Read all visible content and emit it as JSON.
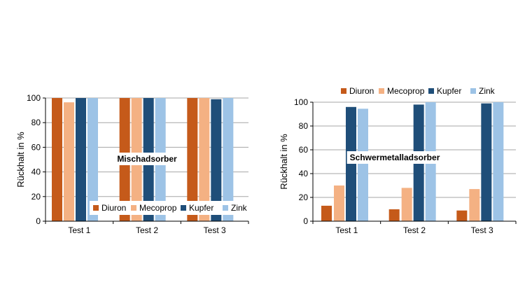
{
  "chart_data": [
    {
      "type": "bar",
      "annotation": "Mischadsorber",
      "ylabel": "Rückhalt in %",
      "ylim": [
        0,
        100
      ],
      "yticks": [
        0,
        20,
        40,
        60,
        80,
        100
      ],
      "grid": true,
      "legend_position": "bottom-right inside plot",
      "categories": [
        "Test 1",
        "Test 2",
        "Test 3"
      ],
      "series": [
        {
          "name": "Diuron",
          "color": "#c55a1a",
          "values": [
            100,
            100,
            100
          ]
        },
        {
          "name": "Mecoprop",
          "color": "#f4b183",
          "values": [
            96.5,
            100,
            100
          ]
        },
        {
          "name": "Kupfer",
          "color": "#1f4e79",
          "values": [
            100,
            100,
            99
          ]
        },
        {
          "name": "Zink",
          "color": "#9dc3e6",
          "values": [
            100,
            100,
            100
          ]
        }
      ]
    },
    {
      "type": "bar",
      "annotation": "Schwermetalladsorber",
      "ylabel": "Rückhalt in %",
      "ylim": [
        0,
        100
      ],
      "yticks": [
        0,
        20,
        40,
        60,
        80,
        100
      ],
      "grid": true,
      "legend_position": "top, above plot",
      "categories": [
        "Test 1",
        "Test 2",
        "Test 3"
      ],
      "series": [
        {
          "name": "Diuron",
          "color": "#c55a1a",
          "values": [
            13,
            10,
            9
          ]
        },
        {
          "name": "Mecoprop",
          "color": "#f4b183",
          "values": [
            30,
            28,
            27
          ]
        },
        {
          "name": "Kupfer",
          "color": "#1f4e79",
          "values": [
            96,
            98,
            99
          ]
        },
        {
          "name": "Zink",
          "color": "#9dc3e6",
          "values": [
            94.5,
            100,
            100
          ]
        }
      ]
    }
  ]
}
